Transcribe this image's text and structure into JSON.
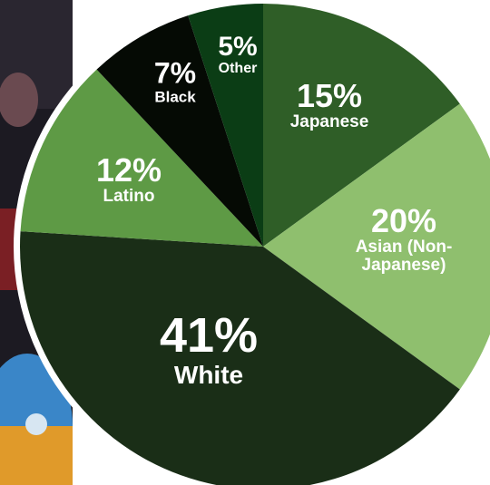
{
  "chart_data": {
    "type": "pie",
    "categories": [
      "Japanese",
      "Asian (Non-Japanese)",
      "White",
      "Latino",
      "Black",
      "Other"
    ],
    "values": [
      15,
      20,
      41,
      12,
      7,
      5
    ],
    "value_labels": [
      "15%",
      "20%",
      "41%",
      "12%",
      "7%",
      "5%"
    ],
    "colors": [
      "#2f5e27",
      "#8fbf6e",
      "#1a2e17",
      "#5e9a45",
      "#050a04",
      "#0b3d15"
    ]
  }
}
